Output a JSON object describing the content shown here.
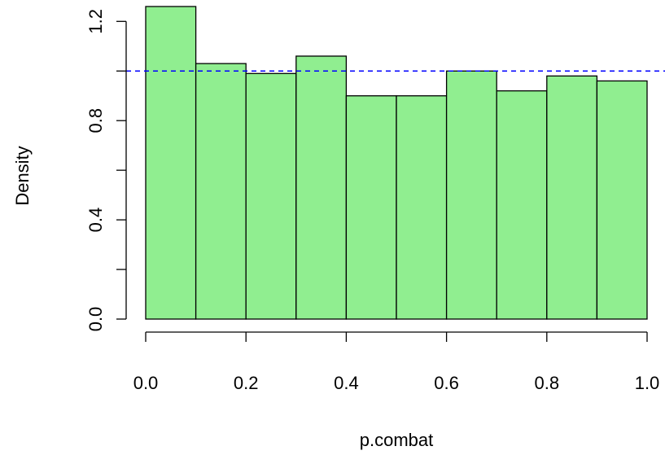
{
  "chart_data": {
    "type": "bar",
    "subtype": "histogram",
    "title": "",
    "xlabel": "p.combat",
    "ylabel": "Density",
    "bins": [
      {
        "x0": 0.0,
        "x1": 0.1,
        "density": 1.26
      },
      {
        "x0": 0.1,
        "x1": 0.2,
        "density": 1.03
      },
      {
        "x0": 0.2,
        "x1": 0.3,
        "density": 0.99
      },
      {
        "x0": 0.3,
        "x1": 0.4,
        "density": 1.06
      },
      {
        "x0": 0.4,
        "x1": 0.5,
        "density": 0.9
      },
      {
        "x0": 0.5,
        "x1": 0.6,
        "density": 0.9
      },
      {
        "x0": 0.6,
        "x1": 0.7,
        "density": 1.0
      },
      {
        "x0": 0.7,
        "x1": 0.8,
        "density": 0.92
      },
      {
        "x0": 0.8,
        "x1": 0.9,
        "density": 0.98
      },
      {
        "x0": 0.9,
        "x1": 1.0,
        "density": 0.96
      }
    ],
    "xlim": [
      0.0,
      1.0
    ],
    "ylim": [
      0.0,
      1.26
    ],
    "x_ticks": [
      0.0,
      0.2,
      0.4,
      0.6,
      0.8,
      1.0
    ],
    "x_tick_labels": [
      "0.0",
      "0.2",
      "0.4",
      "0.6",
      "0.8",
      "1.0"
    ],
    "y_ticks": [
      0.0,
      0.2,
      0.4,
      0.6,
      0.8,
      1.0,
      1.2
    ],
    "y_tick_labels": [
      "0.0",
      "",
      "0.4",
      "",
      "0.8",
      "",
      "1.2"
    ],
    "reference_line": {
      "y": 1.0,
      "color": "#0000ff",
      "style": "dashed"
    },
    "bar_color": "#90ee90",
    "grid": false,
    "legend": "none"
  }
}
